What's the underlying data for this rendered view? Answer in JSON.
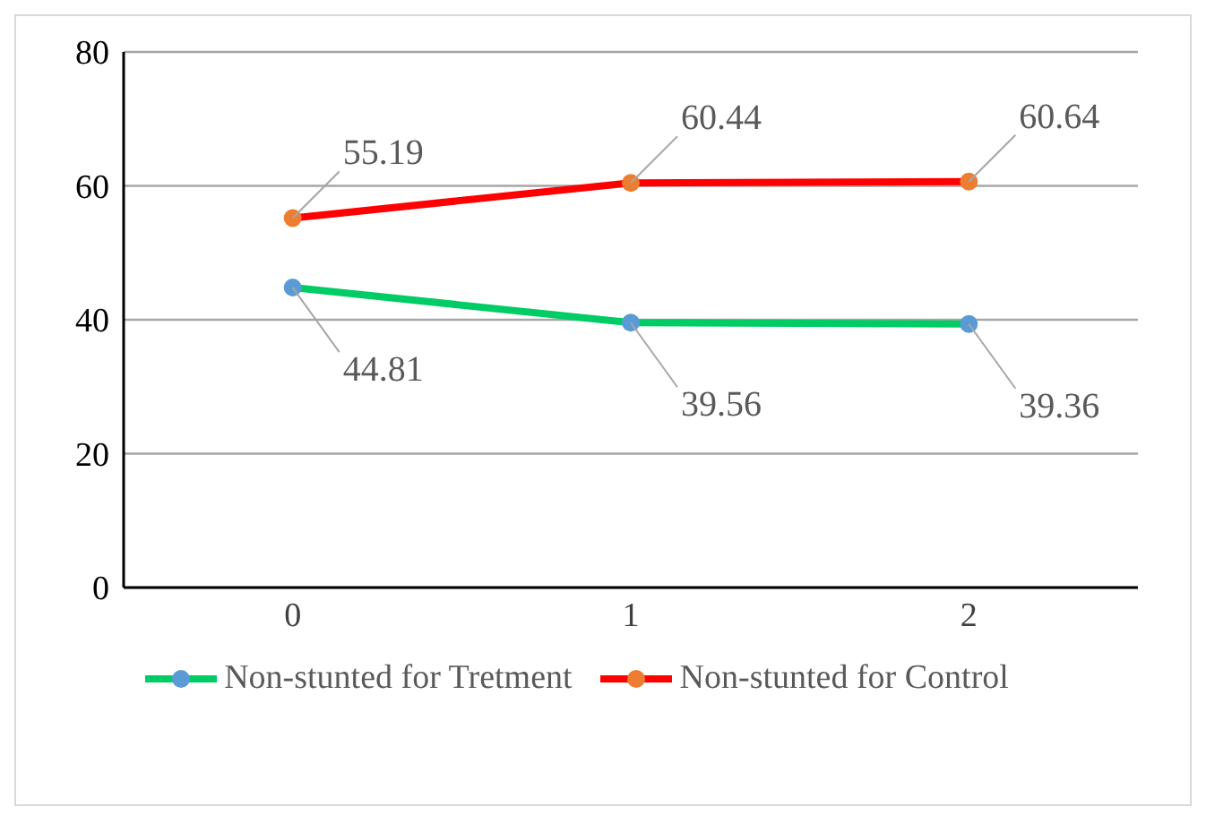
{
  "chart_data": {
    "type": "line",
    "categories": [
      "0",
      "1",
      "2"
    ],
    "series": [
      {
        "name": "Non-stunted for Tretment",
        "color": "#00cc66",
        "colors": [
          "#5b9bd5",
          "#5b9bd5",
          "#5b9bd5"
        ],
        "values": [
          44.81,
          39.56,
          39.36
        ]
      },
      {
        "name": "Non-stunted for Control",
        "color": "#ff0000",
        "colors": [
          "#ed7d31",
          "#ed7d31",
          "#ed7d31"
        ],
        "values": [
          55.19,
          60.44,
          60.64
        ]
      }
    ],
    "ylim": [
      0,
      80
    ],
    "yticks": [
      0,
      20,
      40,
      60,
      80
    ],
    "grid": "y",
    "legend": "bottom",
    "marker": "circle",
    "line_style": "solid",
    "data_labels": true
  }
}
